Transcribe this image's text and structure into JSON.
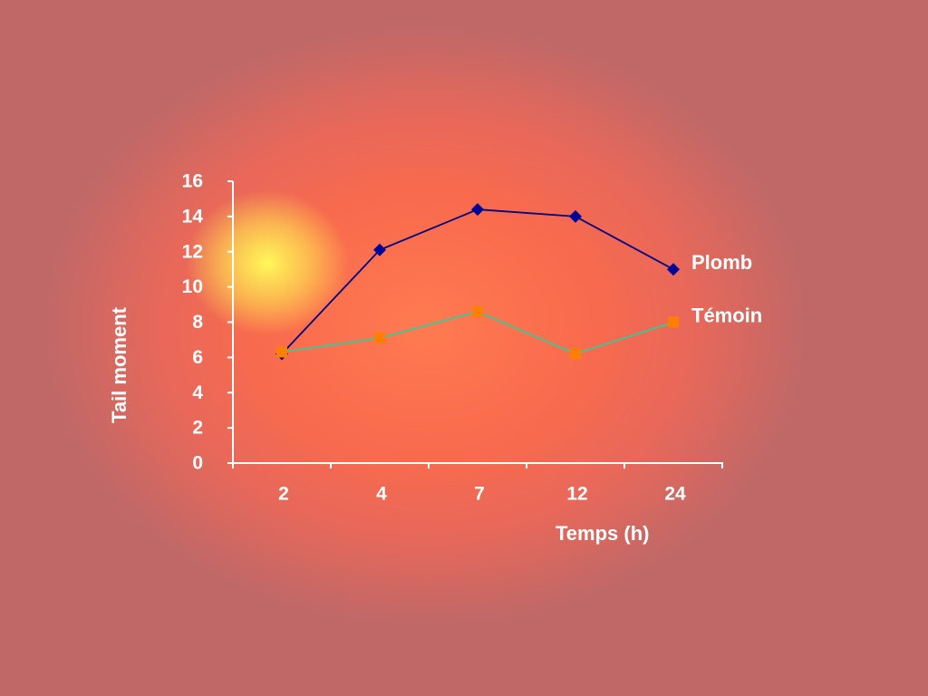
{
  "chart_data": {
    "type": "line",
    "xlabel": "Temps (h)",
    "ylabel": "Tail moment",
    "categories": [
      "2",
      "4",
      "7",
      "12",
      "24"
    ],
    "series": [
      {
        "name": "Plomb",
        "color": "#000080",
        "marker_color": "#000099",
        "marker": "diamond",
        "values": [
          6.2,
          12.1,
          14.4,
          14.0,
          11.0
        ]
      },
      {
        "name": "Témoin",
        "color": "#33cc99",
        "marker_color": "#ff8000",
        "marker": "square",
        "values": [
          6.3,
          7.1,
          8.6,
          6.2,
          8.0
        ]
      }
    ],
    "ylim": [
      0,
      16
    ],
    "yticks": [
      0,
      2,
      4,
      6,
      8,
      10,
      12,
      14,
      16
    ]
  }
}
